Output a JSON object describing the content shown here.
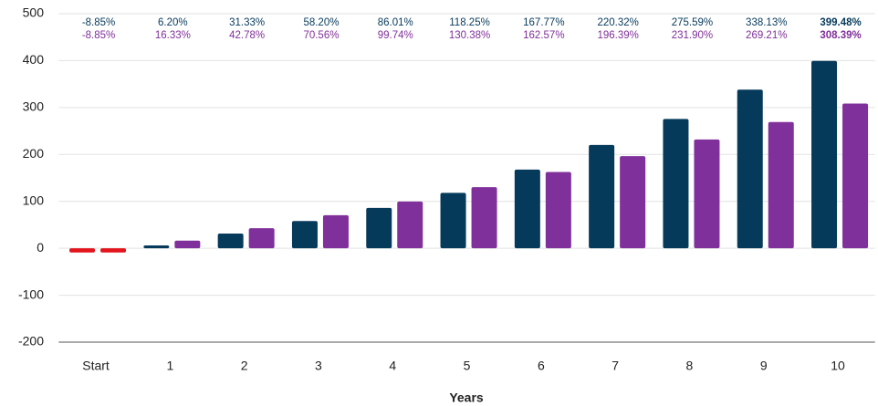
{
  "chart_data": {
    "type": "bar",
    "x_label": "Years",
    "categories": [
      "Start",
      "1",
      "2",
      "3",
      "4",
      "5",
      "6",
      "7",
      "8",
      "9",
      "10"
    ],
    "series": [
      {
        "color": "#063a5b",
        "values": [
          -8.85,
          6.2,
          31.33,
          58.2,
          86.01,
          118.25,
          167.77,
          220.32,
          275.59,
          338.13,
          399.48
        ],
        "value_labels": [
          "-8.85%",
          "6.20%",
          "31.33%",
          "58.20%",
          "86.01%",
          "118.25%",
          "167.77%",
          "220.32%",
          "275.59%",
          "338.13%",
          "399.48%"
        ]
      },
      {
        "color": "#80309a",
        "values": [
          -8.85,
          16.33,
          42.78,
          70.56,
          99.74,
          130.38,
          162.57,
          196.39,
          231.9,
          269.21,
          308.39
        ],
        "value_labels": [
          "-8.85%",
          "16.33%",
          "42.78%",
          "70.56%",
          "99.74%",
          "130.38%",
          "162.57%",
          "196.39%",
          "231.90%",
          "269.21%",
          "308.39%"
        ]
      }
    ],
    "negative_color": "#e3141c",
    "ylim": [
      -200,
      500
    ],
    "yticks": [
      -200,
      -100,
      0,
      100,
      200,
      300,
      400,
      500
    ],
    "grid": true
  }
}
